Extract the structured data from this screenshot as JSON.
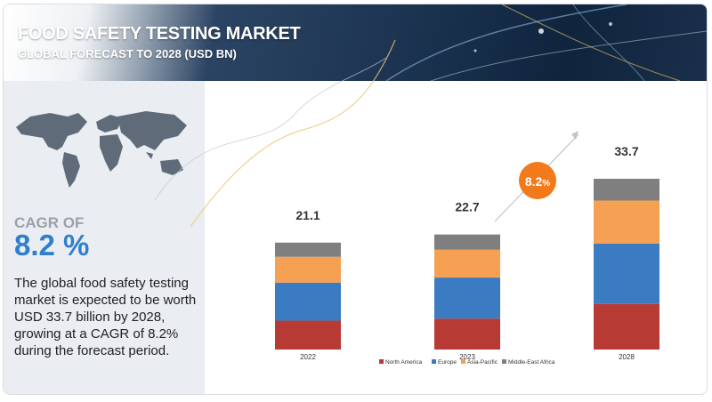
{
  "header": {
    "title": "FOOD SAFETY TESTING MARKET",
    "subtitle": "GLOBAL FORECAST TO 2028 (USD BN)"
  },
  "sidebar": {
    "cagr_label": "CAGR OF",
    "cagr_value": "8.2 %",
    "description": "The global food safety testing market is expected to be worth USD 33.7 billion by 2028, growing at a CAGR of 8.2% during the forecast period."
  },
  "icons": [
    "world-map-icon"
  ],
  "chart_data": {
    "type": "bar",
    "stacked": true,
    "categories": [
      "2022",
      "2023",
      "2028"
    ],
    "totals": [
      21.1,
      22.7,
      33.7
    ],
    "total_labels": [
      "21.1",
      "22.7",
      "33.7"
    ],
    "series": [
      {
        "name": "North America",
        "color": "#b83a35",
        "values": [
          5.7,
          6.1,
          9.0
        ]
      },
      {
        "name": "Europe",
        "color": "#3a7bc2",
        "values": [
          7.5,
          8.1,
          11.9
        ]
      },
      {
        "name": "Asia-Pacific",
        "color": "#f5a052",
        "values": [
          5.1,
          5.5,
          8.5
        ]
      },
      {
        "name": "Middle-East Africa",
        "color": "#7f7f7f",
        "values": [
          2.8,
          3.0,
          4.3
        ]
      }
    ],
    "annotation": {
      "label": "8.2",
      "unit": "%",
      "color": "#f27a1a"
    },
    "legend_position": "bottom",
    "grid": false,
    "ylim": [
      0,
      33.7
    ]
  }
}
